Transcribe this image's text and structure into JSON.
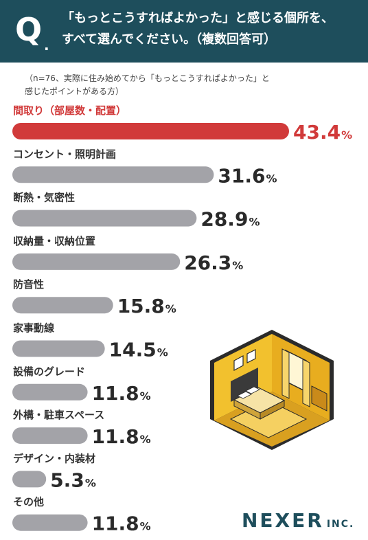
{
  "header": {
    "q_mark": "Q",
    "q_dot": ".",
    "line1": "「もっとこうすればよかった」と感じる個所を、",
    "line2": "すべて選んでください。（複数回答可）"
  },
  "note": {
    "line1": "（n=76、実際に住み始めてから「もっとこうすればよかった」と",
    "line2": "感じたポイントがある方）"
  },
  "chart_data": {
    "type": "bar",
    "orientation": "horizontal",
    "categories": [
      "間取り（部屋数・配置）",
      "コンセント・照明計画",
      "断熱・気密性",
      "収納量・収納位置",
      "防音性",
      "家事動線",
      "設備のグレード",
      "外構・駐車スペース",
      "デザイン・内装材",
      "その他"
    ],
    "values": [
      43.4,
      31.6,
      28.9,
      26.3,
      15.8,
      14.5,
      11.8,
      11.8,
      5.3,
      11.8
    ],
    "value_labels": [
      "43.4",
      "31.6",
      "28.9",
      "26.3",
      "15.8",
      "14.5",
      "11.8",
      "11.8",
      "5.3",
      "11.8"
    ],
    "unit": "%",
    "highlight_index": 0,
    "colors": {
      "highlight": "#d13a3a",
      "default": "#a3a3a8"
    }
  },
  "logo": {
    "main": "NEXER",
    "suffix": "INC."
  },
  "icons": {
    "illustration": "bedroom-isometric-illustration"
  }
}
